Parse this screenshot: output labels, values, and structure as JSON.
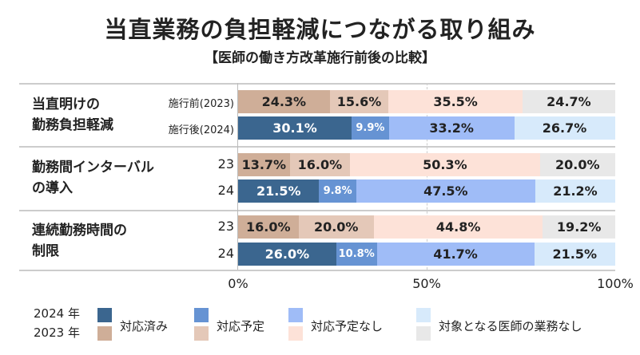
{
  "chart_data": {
    "type": "bar",
    "stacked": true,
    "orientation": "horizontal",
    "title": "当直業務の負担軽減につながる取り組み",
    "subtitle": "【医師の働き方改革施行前後の比較】",
    "xlim": [
      0,
      100
    ],
    "x_ticks": [
      "0%",
      "50%",
      "100%"
    ],
    "groups": [
      {
        "label": "当直明けの勤務負担軽減",
        "label_lines": [
          "当直明けの",
          "勤務負担軽減"
        ],
        "rows": [
          {
            "label": "施行前(2023)",
            "year": "2023",
            "values": [
              24.3,
              15.6,
              35.5,
              24.7
            ]
          },
          {
            "label": "施行後(2024)",
            "year": "2024",
            "values": [
              30.1,
              9.9,
              33.2,
              26.7
            ]
          }
        ]
      },
      {
        "label": "勤務間インターバルの導入",
        "label_lines": [
          "勤務間インターバル",
          "の導入"
        ],
        "rows": [
          {
            "label": "23",
            "year": "2023",
            "values": [
              13.7,
              16.0,
              50.3,
              20.0
            ]
          },
          {
            "label": "24",
            "year": "2024",
            "values": [
              21.5,
              9.8,
              47.5,
              21.2
            ]
          }
        ]
      },
      {
        "label": "連続勤務時間の制限",
        "label_lines": [
          "連続勤務時間の",
          "制限"
        ],
        "rows": [
          {
            "label": "23",
            "year": "2023",
            "values": [
              16.0,
              20.0,
              44.8,
              19.2
            ]
          },
          {
            "label": "24",
            "year": "2024",
            "values": [
              26.0,
              10.8,
              41.7,
              21.5
            ]
          }
        ]
      }
    ],
    "legend": {
      "years": [
        "2024 年",
        "2023 年"
      ],
      "categories": [
        "対応済み",
        "対応予定",
        "対応予定なし",
        "対象となる医師の業務なし"
      ]
    },
    "colors": {
      "2024": [
        "#3b668f",
        "#6693d3",
        "#9fbcf7",
        "#d7eafb"
      ],
      "2023": [
        "#cfae98",
        "#e4c8b8",
        "#fde2d8",
        "#e8e8e8"
      ]
    }
  }
}
